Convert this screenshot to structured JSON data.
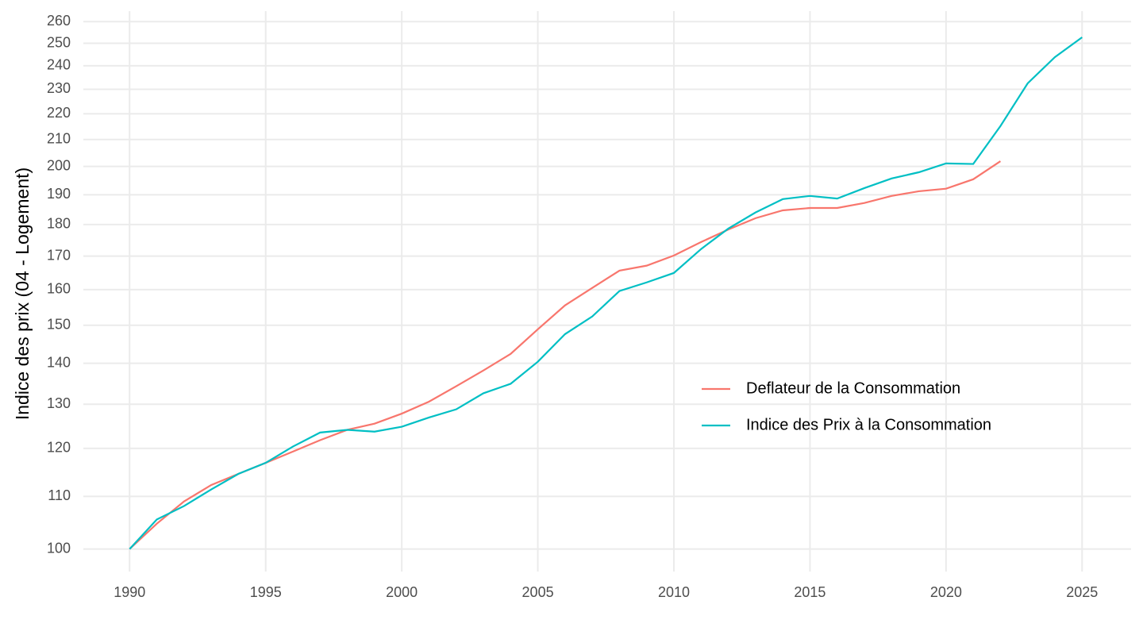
{
  "chart_data": {
    "type": "line",
    "ylabel": "Indice des prix (04 - Logement)",
    "log_y": true,
    "grid": true,
    "legend_position": "inside-right",
    "x": [
      1990,
      1991,
      1992,
      1993,
      1994,
      1995,
      1996,
      1997,
      1998,
      1999,
      2000,
      2001,
      2002,
      2003,
      2004,
      2005,
      2006,
      2007,
      2008,
      2009,
      2010,
      2011,
      2012,
      2013,
      2014,
      2015,
      2016,
      2017,
      2018,
      2019,
      2020,
      2021,
      2022,
      2023,
      2024,
      2025
    ],
    "series": [
      {
        "name": "Deflateur de la Consommation",
        "color": "#F8766D",
        "values": [
          100,
          104.7,
          109.0,
          112.3,
          114.6,
          116.9,
          119.3,
          121.8,
          124.1,
          125.5,
          127.8,
          130.6,
          134.3,
          138.2,
          142.4,
          148.9,
          155.5,
          160.5,
          165.6,
          167.1,
          170.2,
          174.4,
          178.4,
          182.1,
          184.7,
          185.5,
          185.5,
          187.2,
          189.6,
          191.2,
          192.1,
          195.4,
          201.9,
          null,
          null,
          null
        ]
      },
      {
        "name": "Indice des Prix à la Consommation",
        "color": "#00BFC4",
        "values": [
          100,
          105.5,
          108.1,
          111.4,
          114.6,
          116.9,
          120.4,
          123.5,
          124.1,
          123.7,
          124.8,
          126.9,
          128.8,
          132.6,
          134.9,
          140.4,
          147.6,
          152.4,
          159.6,
          162.1,
          164.9,
          172.2,
          178.7,
          184.0,
          188.5,
          189.6,
          188.7,
          192.3,
          195.7,
          197.9,
          201.1,
          200.9,
          215.2,
          232.5,
          243.8,
          252.7
        ]
      }
    ],
    "xlim": [
      1988.3,
      2026.8
    ],
    "xticks": [
      1990,
      1995,
      2000,
      2005,
      2010,
      2015,
      2020,
      2025
    ],
    "ylim": [
      96,
      265
    ],
    "yticks": [
      100,
      110,
      120,
      130,
      140,
      150,
      160,
      170,
      180,
      190,
      200,
      210,
      220,
      230,
      240,
      250,
      260
    ]
  }
}
